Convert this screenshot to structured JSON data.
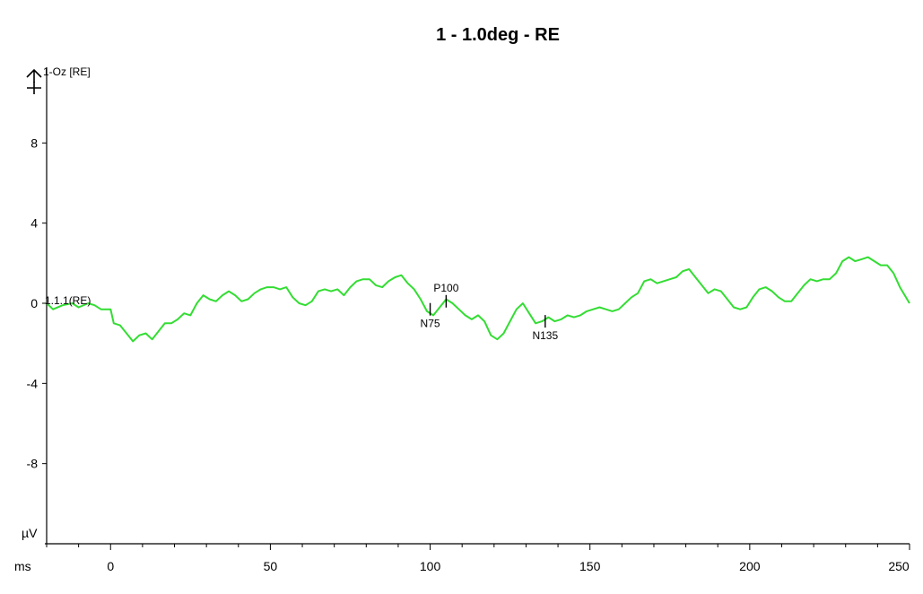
{
  "chart_data": {
    "type": "line",
    "title": "1 - 1.0deg - RE",
    "channel_label": "1-Oz [RE]",
    "trace_label": "1.1.1(RE)",
    "xunit": "ms",
    "yunit": "µV",
    "xlim": [
      -20,
      250
    ],
    "ylim": [
      -12,
      12
    ],
    "x_ticks": [
      0,
      50,
      100,
      150,
      200,
      250
    ],
    "y_ticks": [
      8,
      4,
      0,
      -4,
      -8
    ],
    "line_color": "#33dd33",
    "series": [
      {
        "x": [
          -20,
          -18,
          -15,
          -12,
          -10,
          -7,
          -5,
          -3,
          0,
          1,
          3,
          5,
          7,
          9,
          11,
          13,
          15,
          17,
          19,
          21,
          23,
          25,
          27,
          29,
          31,
          33,
          35,
          37,
          39,
          41,
          43,
          45,
          47,
          49,
          51,
          53,
          55,
          57,
          59,
          61,
          63,
          65,
          67,
          69,
          71,
          73,
          75,
          77,
          79,
          81,
          83,
          85,
          87,
          89,
          91,
          93,
          95,
          97,
          99,
          101,
          103,
          105,
          107,
          109,
          111,
          113,
          115,
          117,
          119,
          121,
          123,
          125,
          127,
          129,
          131,
          133,
          135,
          137,
          139,
          141,
          143,
          145,
          147,
          149,
          151,
          153,
          155,
          157,
          159,
          161,
          163,
          165,
          167,
          169,
          171,
          173,
          175,
          177,
          179,
          181,
          183,
          185,
          187,
          189,
          191,
          193,
          195,
          197,
          199,
          201,
          203,
          205,
          207,
          209,
          211,
          213,
          215,
          217,
          219,
          221,
          223,
          225,
          227,
          229,
          231,
          233,
          235,
          237,
          239,
          241,
          243,
          245,
          247,
          250
        ],
        "y": [
          0.0,
          -0.3,
          -0.1,
          0.0,
          -0.2,
          0.0,
          -0.1,
          -0.3,
          -0.3,
          -1.0,
          -1.1,
          -1.5,
          -1.9,
          -1.6,
          -1.5,
          -1.8,
          -1.4,
          -1.0,
          -1.0,
          -0.8,
          -0.5,
          -0.6,
          0.0,
          0.4,
          0.2,
          0.1,
          0.4,
          0.6,
          0.4,
          0.1,
          0.2,
          0.5,
          0.7,
          0.8,
          0.8,
          0.7,
          0.8,
          0.3,
          0.0,
          -0.1,
          0.1,
          0.6,
          0.7,
          0.6,
          0.7,
          0.4,
          0.8,
          1.1,
          1.2,
          1.2,
          0.9,
          0.8,
          1.1,
          1.3,
          1.4,
          1.0,
          0.7,
          0.2,
          -0.4,
          -0.6,
          -0.2,
          0.2,
          0.0,
          -0.3,
          -0.6,
          -0.8,
          -0.6,
          -0.9,
          -1.6,
          -1.8,
          -1.5,
          -0.9,
          -0.3,
          0.0,
          -0.5,
          -1.0,
          -0.9,
          -0.7,
          -0.9,
          -0.8,
          -0.6,
          -0.7,
          -0.6,
          -0.4,
          -0.3,
          -0.2,
          -0.3,
          -0.4,
          -0.3,
          0.0,
          0.3,
          0.5,
          1.1,
          1.2,
          1.0,
          1.1,
          1.2,
          1.3,
          1.6,
          1.7,
          1.3,
          0.9,
          0.5,
          0.7,
          0.6,
          0.2,
          -0.2,
          -0.3,
          -0.2,
          0.3,
          0.7,
          0.8,
          0.6,
          0.3,
          0.1,
          0.1,
          0.5,
          0.9,
          1.2,
          1.1,
          1.2,
          1.2,
          1.5,
          2.1,
          2.3,
          2.1,
          2.2,
          2.3,
          2.1,
          1.9,
          1.9,
          1.5,
          0.8,
          0.0
        ]
      }
    ],
    "markers": [
      {
        "label": "N75",
        "x": 100,
        "y": -0.3,
        "label_pos": "below"
      },
      {
        "label": "P100",
        "x": 105,
        "y": 0.1,
        "label_pos": "above"
      },
      {
        "label": "N135",
        "x": 136,
        "y": -0.9,
        "label_pos": "below"
      }
    ]
  }
}
